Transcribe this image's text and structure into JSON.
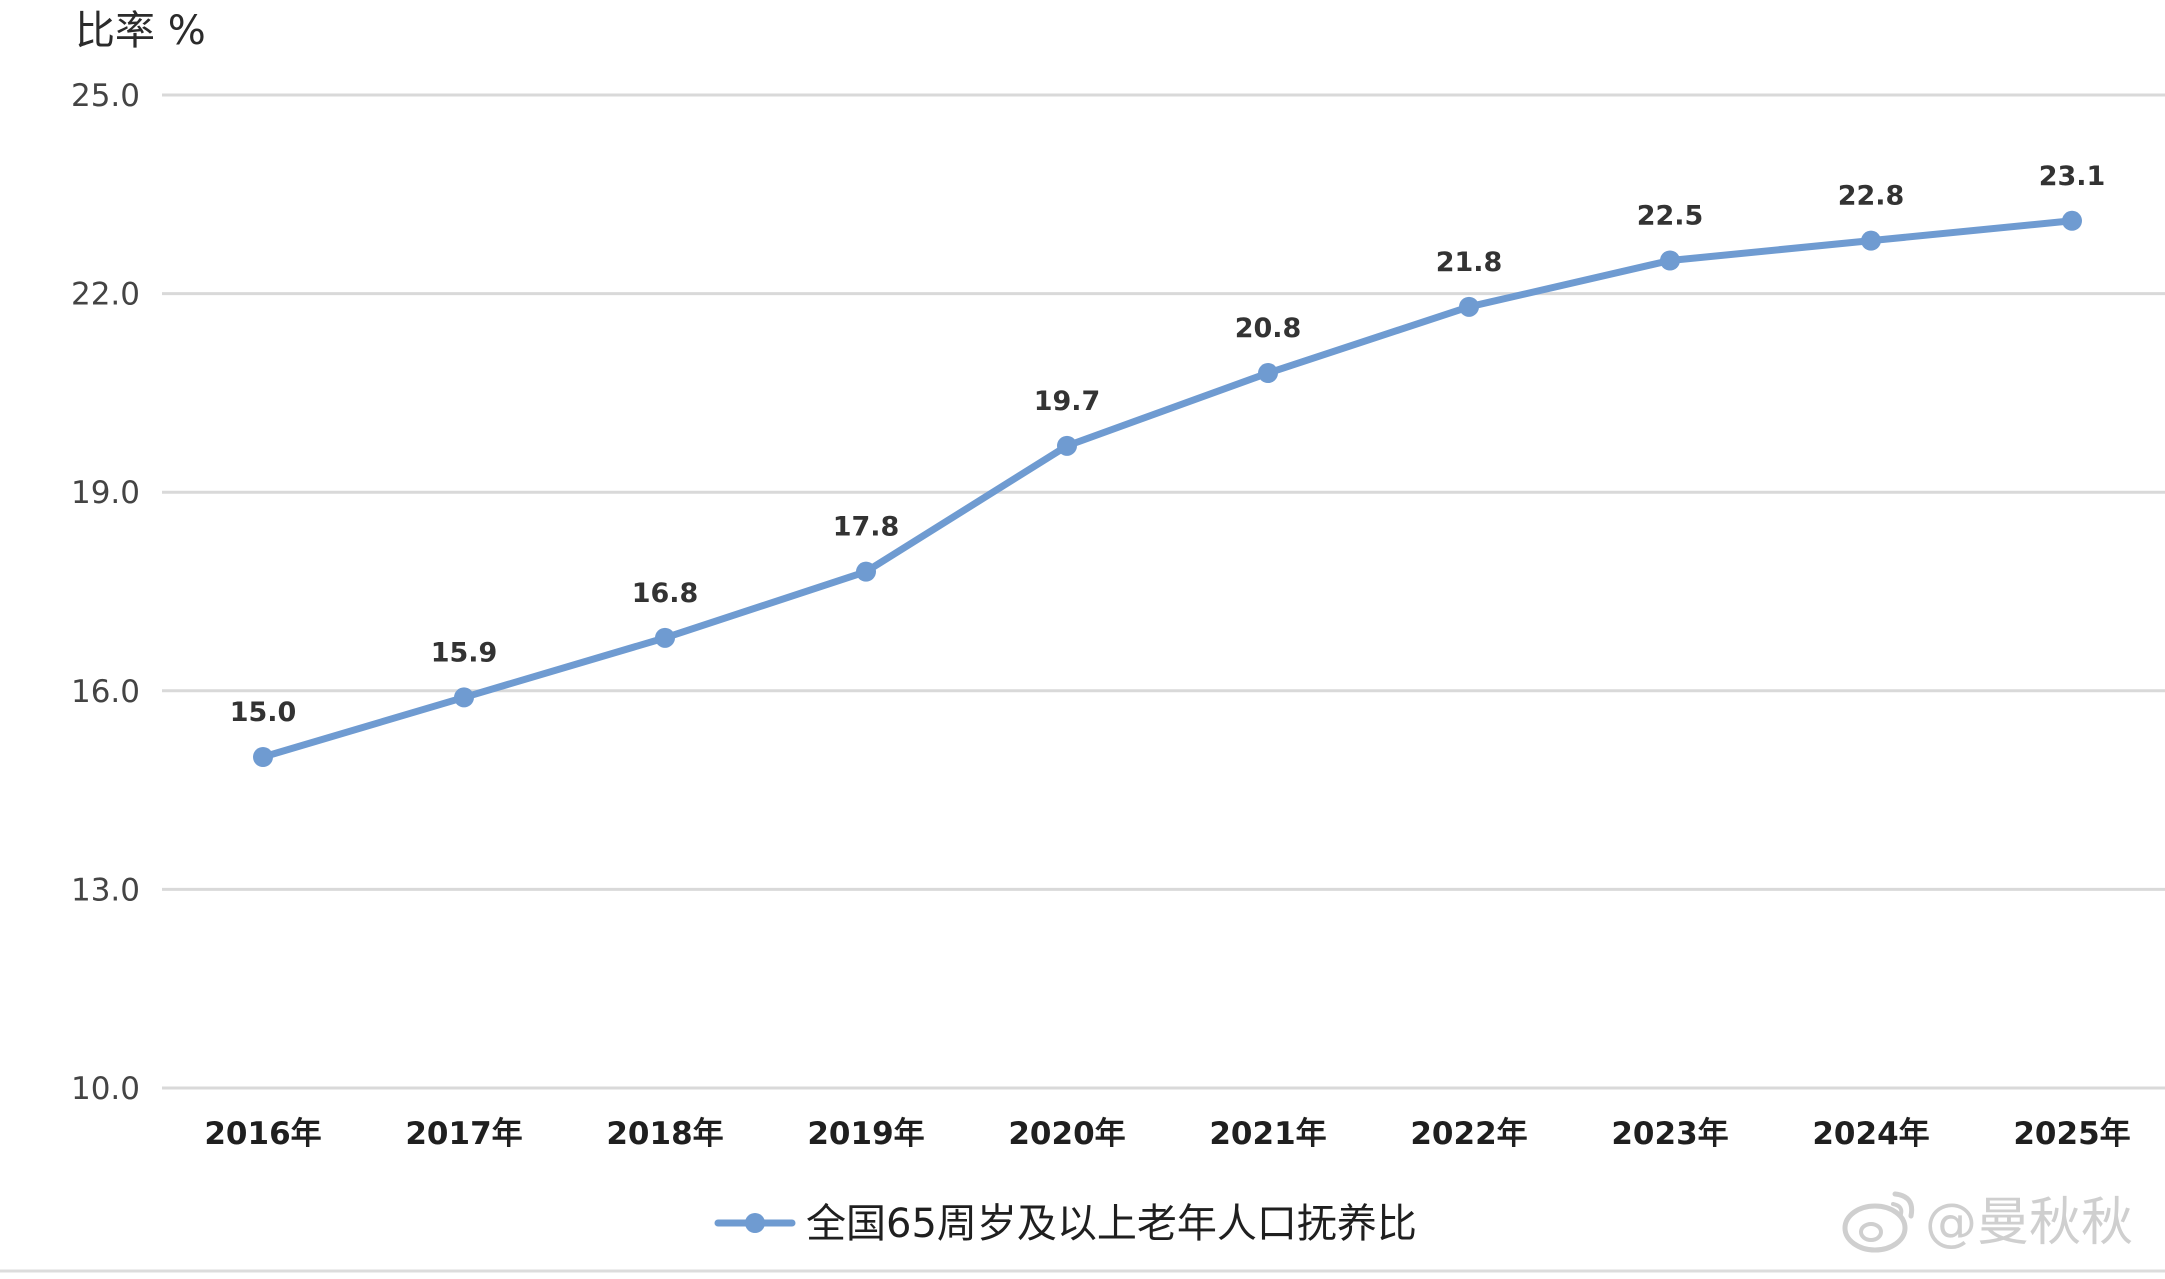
{
  "chart_data": {
    "type": "line",
    "ylabel": "比率 %",
    "ylim": [
      10.0,
      25.0
    ],
    "yticks": [
      "10.0",
      "13.0",
      "16.0",
      "19.0",
      "22.0",
      "25.0"
    ],
    "categories": [
      "2016年",
      "2017年",
      "2018年",
      "2019年",
      "2020年",
      "2021年",
      "2022年",
      "2023年",
      "2024年",
      "2025年"
    ],
    "series": [
      {
        "name": "全国65周岁及以上老年人口抚养比",
        "values": [
          15.0,
          15.9,
          16.8,
          17.8,
          19.7,
          20.8,
          21.8,
          22.5,
          22.8,
          23.1
        ],
        "labels": [
          "15.0",
          "15.9",
          "16.8",
          "17.8",
          "19.7",
          "20.8",
          "21.8",
          "22.5",
          "22.8",
          "23.1"
        ],
        "color": "#6f9bd1"
      }
    ],
    "grid": true,
    "legend": "bottom-center",
    "gridColor": "#d9d9d9"
  },
  "watermark": {
    "text": "@曼秋秋",
    "icon": "weibo-icon"
  }
}
